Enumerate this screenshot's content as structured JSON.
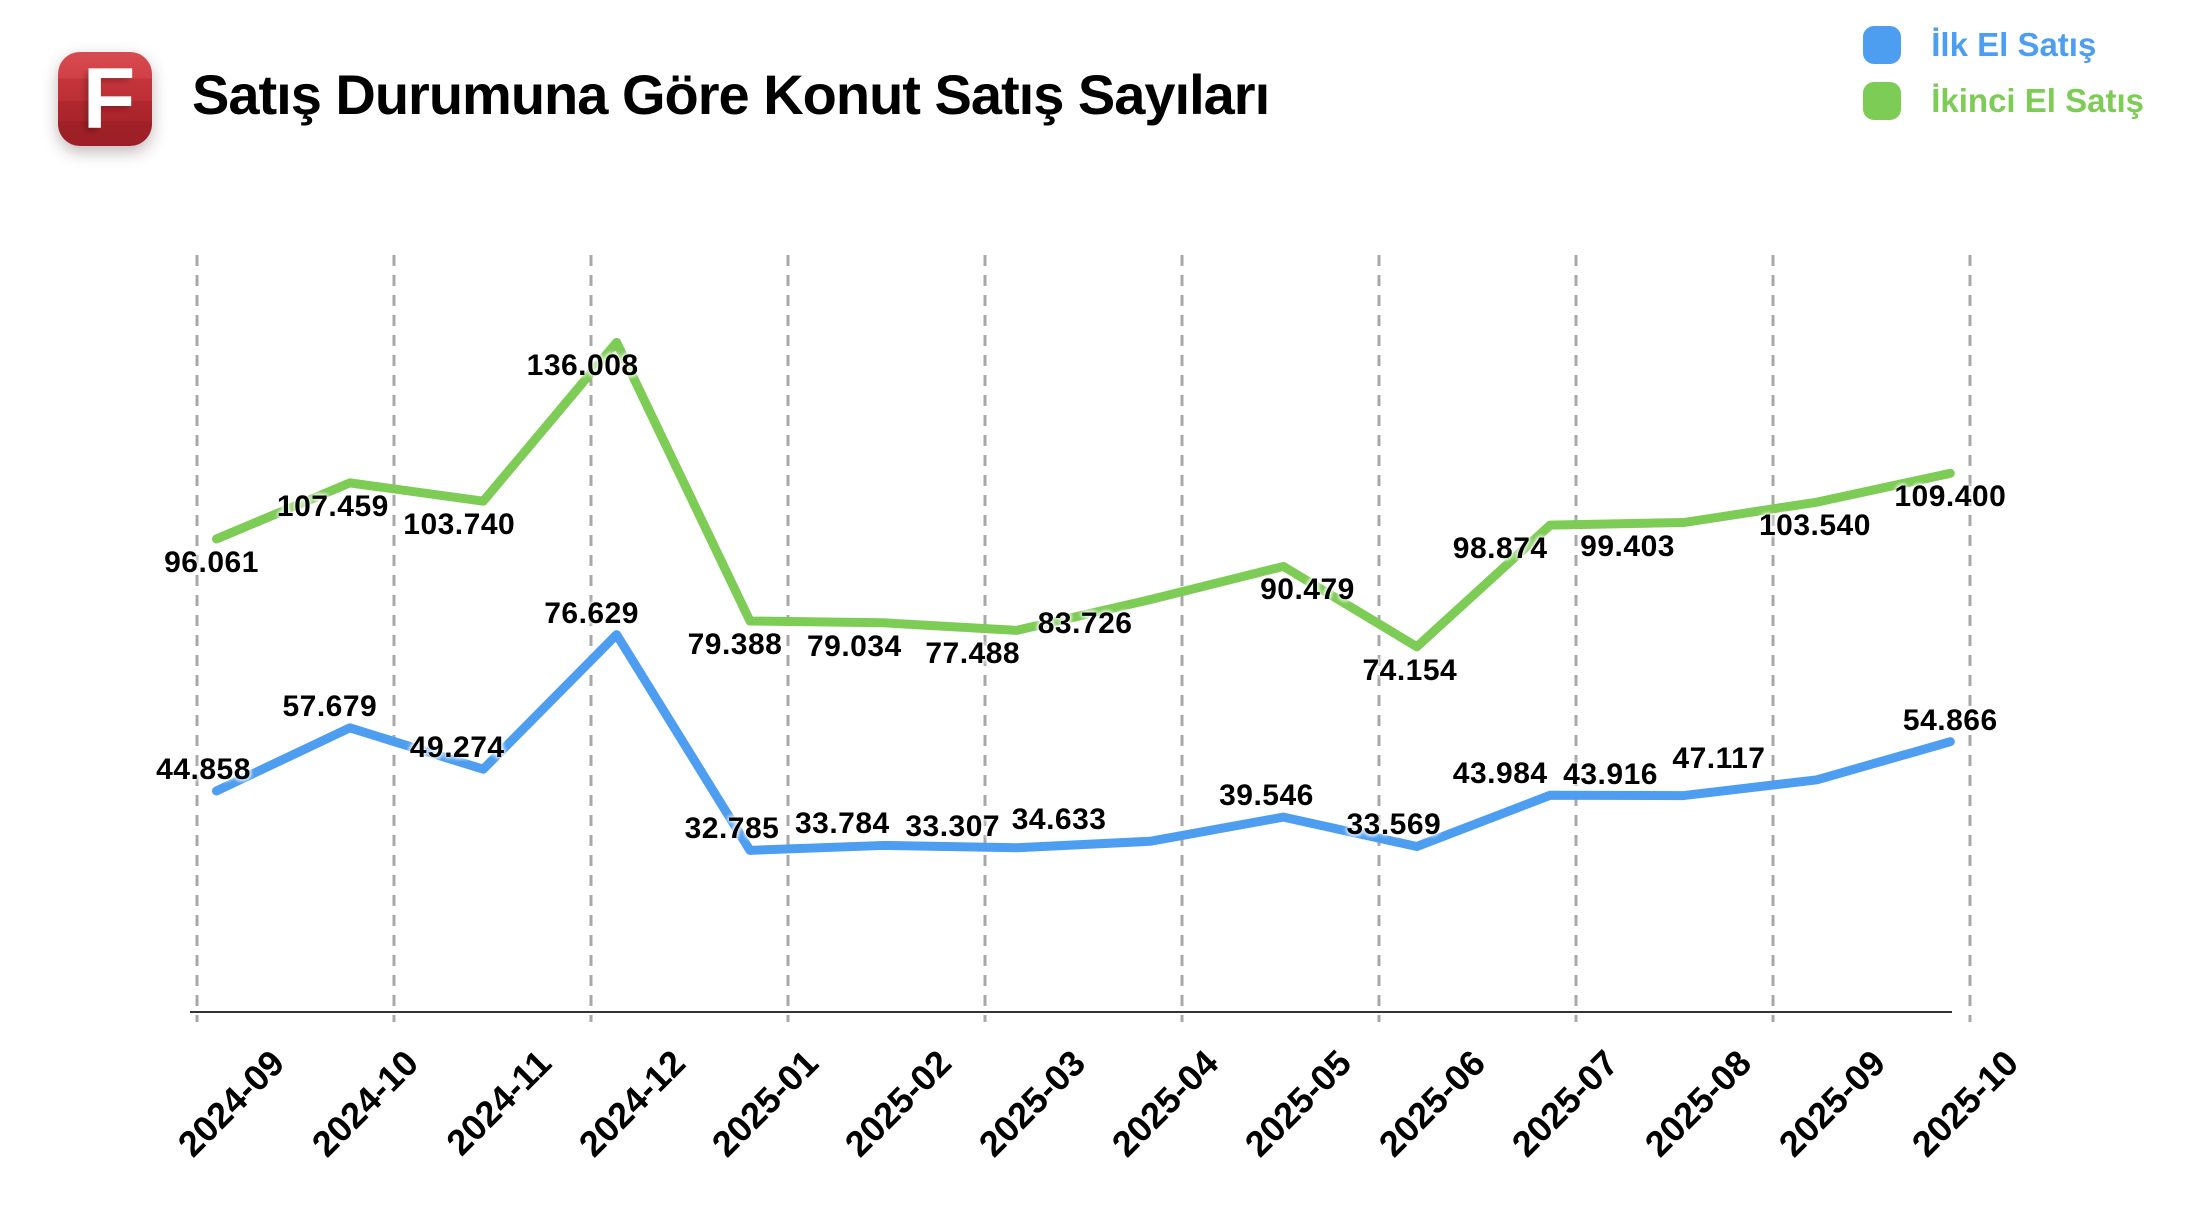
{
  "header": {
    "logo_letter": "F",
    "title": "Satış Durumuna Göre Konut Satış Sayıları"
  },
  "legend": [
    {
      "label": "İlk El Satış",
      "color": "#4D9EF1"
    },
    {
      "label": "İkinci El Satış",
      "color": "#7DCC55"
    }
  ],
  "chart_data": {
    "type": "line",
    "title": "Satış Durumuna Göre Konut Satış Sayıları",
    "categories": [
      "2024-09",
      "2024-10",
      "2024-11",
      "2024-12",
      "2025-01",
      "2025-02",
      "2025-03",
      "2025-04",
      "2025-05",
      "2025-06",
      "2025-07",
      "2025-08",
      "2025-09",
      "2025-10"
    ],
    "series": [
      {
        "name": "İlk El Satış",
        "color": "#4D9EF1",
        "values": [
          44858,
          57679,
          49274,
          76629,
          32785,
          33784,
          33307,
          34633,
          39546,
          33569,
          43984,
          43916,
          47117,
          54866
        ]
      },
      {
        "name": "İkinci El Satış",
        "color": "#7DCC55",
        "values": [
          96061,
          107459,
          103740,
          136008,
          79388,
          79034,
          77488,
          83726,
          90479,
          74154,
          98874,
          99403,
          103540,
          109400
        ]
      }
    ],
    "value_label_format": "thousands-dot-separator",
    "ylim": [
      0,
      160000
    ],
    "xlabel": "",
    "ylabel": "",
    "grid": "vertical-dashed-only",
    "gridline_color": "#A8A8A8",
    "axis_color": "#333333",
    "legend_position": "top-right",
    "data_labels_visible": true
  }
}
